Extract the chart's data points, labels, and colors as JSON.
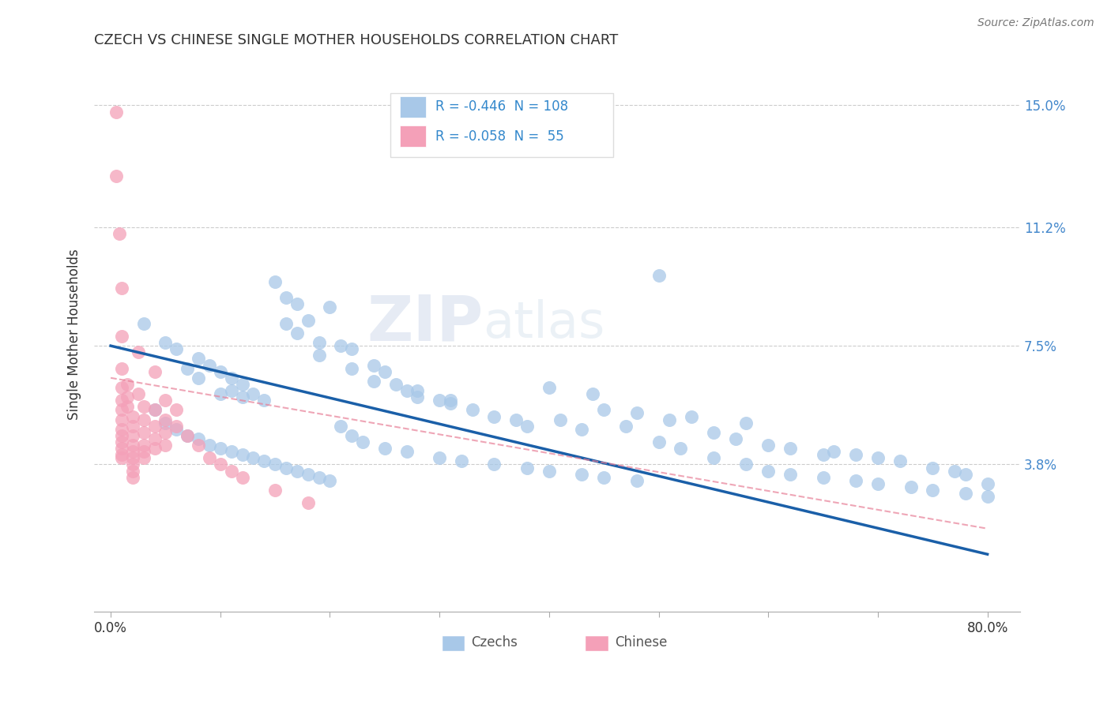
{
  "title": "CZECH VS CHINESE SINGLE MOTHER HOUSEHOLDS CORRELATION CHART",
  "source": "Source: ZipAtlas.com",
  "ylabel": "Single Mother Households",
  "watermark": "ZIPatlas",
  "x_tick_positions": [
    0.0,
    0.1,
    0.2,
    0.3,
    0.4,
    0.5,
    0.6,
    0.7,
    0.8
  ],
  "x_tick_labels": [
    "0.0%",
    "",
    "",
    "",
    "",
    "",
    "",
    "",
    "80.0%"
  ],
  "y_ticks": [
    0.0,
    0.038,
    0.075,
    0.112,
    0.15
  ],
  "y_tick_labels": [
    "",
    "3.8%",
    "7.5%",
    "11.2%",
    "15.0%"
  ],
  "xlim": [
    -0.015,
    0.83
  ],
  "ylim": [
    -0.008,
    0.165
  ],
  "czech_color": "#a8c8e8",
  "chinese_color": "#f4a0b8",
  "czech_line_color": "#1a5fa8",
  "chinese_line_color": "#e88098",
  "czech_R": -0.446,
  "czech_N": 108,
  "chinese_R": -0.058,
  "chinese_N": 55,
  "czech_line_x0": 0.0,
  "czech_line_y0": 0.075,
  "czech_line_x1": 0.8,
  "czech_line_y1": 0.01,
  "chinese_line_x0": 0.0,
  "chinese_line_y0": 0.065,
  "chinese_line_x1": 0.8,
  "chinese_line_y1": 0.018,
  "czech_scatter": [
    [
      0.03,
      0.082
    ],
    [
      0.05,
      0.076
    ],
    [
      0.06,
      0.074
    ],
    [
      0.07,
      0.068
    ],
    [
      0.08,
      0.071
    ],
    [
      0.08,
      0.065
    ],
    [
      0.09,
      0.069
    ],
    [
      0.1,
      0.067
    ],
    [
      0.1,
      0.06
    ],
    [
      0.11,
      0.065
    ],
    [
      0.11,
      0.061
    ],
    [
      0.12,
      0.063
    ],
    [
      0.12,
      0.059
    ],
    [
      0.13,
      0.06
    ],
    [
      0.14,
      0.058
    ],
    [
      0.15,
      0.095
    ],
    [
      0.16,
      0.09
    ],
    [
      0.17,
      0.088
    ],
    [
      0.18,
      0.083
    ],
    [
      0.19,
      0.076
    ],
    [
      0.2,
      0.087
    ],
    [
      0.21,
      0.075
    ],
    [
      0.22,
      0.074
    ],
    [
      0.24,
      0.069
    ],
    [
      0.25,
      0.067
    ],
    [
      0.26,
      0.063
    ],
    [
      0.27,
      0.061
    ],
    [
      0.28,
      0.059
    ],
    [
      0.3,
      0.058
    ],
    [
      0.31,
      0.057
    ],
    [
      0.33,
      0.055
    ],
    [
      0.35,
      0.053
    ],
    [
      0.37,
      0.052
    ],
    [
      0.38,
      0.05
    ],
    [
      0.4,
      0.062
    ],
    [
      0.41,
      0.052
    ],
    [
      0.43,
      0.049
    ],
    [
      0.44,
      0.06
    ],
    [
      0.45,
      0.055
    ],
    [
      0.47,
      0.05
    ],
    [
      0.48,
      0.054
    ],
    [
      0.5,
      0.097
    ],
    [
      0.51,
      0.052
    ],
    [
      0.53,
      0.053
    ],
    [
      0.55,
      0.048
    ],
    [
      0.57,
      0.046
    ],
    [
      0.58,
      0.051
    ],
    [
      0.6,
      0.044
    ],
    [
      0.62,
      0.043
    ],
    [
      0.65,
      0.041
    ],
    [
      0.66,
      0.042
    ],
    [
      0.68,
      0.041
    ],
    [
      0.7,
      0.04
    ],
    [
      0.72,
      0.039
    ],
    [
      0.75,
      0.037
    ],
    [
      0.77,
      0.036
    ],
    [
      0.78,
      0.035
    ],
    [
      0.8,
      0.032
    ],
    [
      0.04,
      0.055
    ],
    [
      0.05,
      0.051
    ],
    [
      0.06,
      0.049
    ],
    [
      0.07,
      0.047
    ],
    [
      0.08,
      0.046
    ],
    [
      0.09,
      0.044
    ],
    [
      0.1,
      0.043
    ],
    [
      0.11,
      0.042
    ],
    [
      0.12,
      0.041
    ],
    [
      0.13,
      0.04
    ],
    [
      0.14,
      0.039
    ],
    [
      0.15,
      0.038
    ],
    [
      0.16,
      0.037
    ],
    [
      0.17,
      0.036
    ],
    [
      0.18,
      0.035
    ],
    [
      0.19,
      0.034
    ],
    [
      0.2,
      0.033
    ],
    [
      0.21,
      0.05
    ],
    [
      0.22,
      0.047
    ],
    [
      0.23,
      0.045
    ],
    [
      0.25,
      0.043
    ],
    [
      0.27,
      0.042
    ],
    [
      0.3,
      0.04
    ],
    [
      0.32,
      0.039
    ],
    [
      0.35,
      0.038
    ],
    [
      0.38,
      0.037
    ],
    [
      0.4,
      0.036
    ],
    [
      0.43,
      0.035
    ],
    [
      0.45,
      0.034
    ],
    [
      0.48,
      0.033
    ],
    [
      0.5,
      0.045
    ],
    [
      0.52,
      0.043
    ],
    [
      0.55,
      0.04
    ],
    [
      0.58,
      0.038
    ],
    [
      0.6,
      0.036
    ],
    [
      0.62,
      0.035
    ],
    [
      0.65,
      0.034
    ],
    [
      0.68,
      0.033
    ],
    [
      0.7,
      0.032
    ],
    [
      0.73,
      0.031
    ],
    [
      0.75,
      0.03
    ],
    [
      0.78,
      0.029
    ],
    [
      0.8,
      0.028
    ],
    [
      0.16,
      0.082
    ],
    [
      0.17,
      0.079
    ],
    [
      0.19,
      0.072
    ],
    [
      0.22,
      0.068
    ],
    [
      0.24,
      0.064
    ],
    [
      0.28,
      0.061
    ],
    [
      0.31,
      0.058
    ]
  ],
  "chinese_scatter": [
    [
      0.005,
      0.148
    ],
    [
      0.005,
      0.128
    ],
    [
      0.008,
      0.11
    ],
    [
      0.01,
      0.093
    ],
    [
      0.01,
      0.078
    ],
    [
      0.01,
      0.068
    ],
    [
      0.01,
      0.062
    ],
    [
      0.01,
      0.058
    ],
    [
      0.01,
      0.055
    ],
    [
      0.01,
      0.052
    ],
    [
      0.01,
      0.049
    ],
    [
      0.01,
      0.047
    ],
    [
      0.01,
      0.045
    ],
    [
      0.01,
      0.043
    ],
    [
      0.01,
      0.041
    ],
    [
      0.01,
      0.04
    ],
    [
      0.015,
      0.063
    ],
    [
      0.015,
      0.059
    ],
    [
      0.015,
      0.056
    ],
    [
      0.02,
      0.053
    ],
    [
      0.02,
      0.05
    ],
    [
      0.02,
      0.047
    ],
    [
      0.02,
      0.044
    ],
    [
      0.02,
      0.042
    ],
    [
      0.02,
      0.04
    ],
    [
      0.02,
      0.038
    ],
    [
      0.02,
      0.036
    ],
    [
      0.02,
      0.034
    ],
    [
      0.025,
      0.073
    ],
    [
      0.025,
      0.06
    ],
    [
      0.03,
      0.056
    ],
    [
      0.03,
      0.052
    ],
    [
      0.03,
      0.048
    ],
    [
      0.03,
      0.044
    ],
    [
      0.03,
      0.042
    ],
    [
      0.03,
      0.04
    ],
    [
      0.04,
      0.067
    ],
    [
      0.04,
      0.055
    ],
    [
      0.04,
      0.05
    ],
    [
      0.04,
      0.046
    ],
    [
      0.04,
      0.043
    ],
    [
      0.05,
      0.058
    ],
    [
      0.05,
      0.052
    ],
    [
      0.05,
      0.048
    ],
    [
      0.05,
      0.044
    ],
    [
      0.06,
      0.055
    ],
    [
      0.06,
      0.05
    ],
    [
      0.07,
      0.047
    ],
    [
      0.08,
      0.044
    ],
    [
      0.09,
      0.04
    ],
    [
      0.1,
      0.038
    ],
    [
      0.11,
      0.036
    ],
    [
      0.12,
      0.034
    ],
    [
      0.15,
      0.03
    ],
    [
      0.18,
      0.026
    ]
  ]
}
